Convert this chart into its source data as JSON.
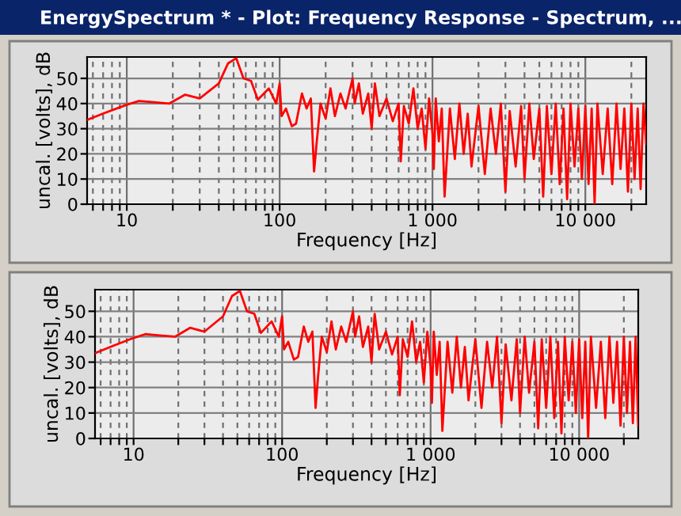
{
  "chart_data": [
    {
      "type": "line",
      "title": "EnergySpectrum * - Plot: Frequency Response - Spectrum, ...",
      "xlabel": "Frequency [Hz]",
      "ylabel": "uncal. [volts], dB",
      "log": "x",
      "grid": true,
      "xlim": [
        5.5,
        25000
      ],
      "ylim": [
        0,
        58.5
      ],
      "xticks": [
        {
          "value": 6,
          "label": null
        },
        {
          "value": 7,
          "label": null
        },
        {
          "value": 8,
          "label": null
        },
        {
          "value": 9,
          "label": null
        },
        10,
        {
          "value": 20,
          "label": null
        },
        {
          "value": 30,
          "label": null
        },
        {
          "value": 40,
          "label": null
        },
        {
          "value": 50,
          "label": null
        },
        {
          "value": 60,
          "label": null
        },
        {
          "value": 70,
          "label": null
        },
        {
          "value": 80,
          "label": null
        },
        {
          "value": 90,
          "label": null
        },
        100,
        {
          "value": 200,
          "label": null
        },
        {
          "value": 300,
          "label": null
        },
        {
          "value": 400,
          "label": null
        },
        {
          "value": 500,
          "label": null
        },
        {
          "value": 600,
          "label": null
        },
        {
          "value": 700,
          "label": null
        },
        {
          "value": 800,
          "label": null
        },
        {
          "value": 900,
          "label": null
        },
        {
          "value": 1000,
          "label": "1 000"
        },
        {
          "value": 2000,
          "label": null
        },
        {
          "value": 3000,
          "label": null
        },
        {
          "value": 4000,
          "label": null
        },
        {
          "value": 5000,
          "label": null
        },
        {
          "value": 6000,
          "label": null
        },
        {
          "value": 7000,
          "label": null
        },
        {
          "value": 8000,
          "label": null
        },
        {
          "value": 9000,
          "label": null
        },
        {
          "value": 10000,
          "label": "10 000"
        },
        {
          "value": 20000,
          "label": null
        }
      ],
      "yticks": [
        0,
        10,
        20,
        30,
        40,
        50
      ],
      "series": [
        {
          "color": "#ff0000",
          "x": [
            5.5,
            7,
            9,
            10,
            12,
            15,
            19,
            24,
            30,
            40,
            46,
            52,
            58,
            65,
            72,
            85,
            95,
            100,
            103,
            110,
            120,
            128,
            140,
            150,
            160,
            168,
            175,
            185,
            200,
            215,
            230,
            250,
            270,
            300,
            310,
            330,
            350,
            380,
            400,
            420,
            450,
            500,
            550,
            600,
            620,
            650,
            700,
            750,
            800,
            850,
            900,
            950,
            1000,
            1020,
            1050,
            1100,
            1150,
            1200,
            1300,
            1400,
            1500,
            1600,
            1700,
            1800,
            2000,
            2200,
            2400,
            2600,
            2800,
            3000,
            3200,
            3500,
            3800,
            4000,
            4300,
            4600,
            5000,
            5300,
            5600,
            6000,
            6400,
            6800,
            7200,
            7600,
            8000,
            8500,
            9000,
            9500,
            10000,
            10500,
            11000,
            11500,
            12000,
            13000,
            14000,
            15000,
            16000,
            17000,
            18000,
            19000,
            20000,
            21000,
            22000,
            23000,
            24000,
            25000
          ],
          "values": [
            33.5,
            36,
            38.5,
            39.5,
            41,
            40.5,
            40,
            43.5,
            42,
            48,
            56,
            58,
            50,
            49,
            41.5,
            46,
            40,
            48,
            35,
            38,
            31,
            32,
            44,
            38,
            42,
            13,
            25,
            40,
            34,
            46,
            35,
            44,
            38,
            50,
            40,
            48,
            36,
            44,
            30,
            48,
            35,
            42,
            33,
            40,
            17,
            39,
            32,
            46,
            30,
            38,
            22,
            42,
            28,
            14,
            42,
            25,
            38,
            3,
            38,
            18,
            40,
            20,
            36,
            15,
            39,
            12,
            38,
            20,
            40,
            5,
            37,
            15,
            39,
            10,
            40,
            18,
            38,
            3,
            39,
            12,
            40,
            8,
            38,
            2,
            40,
            15,
            38,
            10,
            39,
            8,
            38,
            0,
            40,
            12,
            38,
            8,
            40,
            14,
            38,
            5,
            40,
            10,
            38,
            6,
            40,
            24
          ]
        }
      ]
    },
    {
      "type": "line",
      "xlabel": "Frequency [Hz]",
      "ylabel": "uncal. [volts], dB",
      "log": "x",
      "grid": true,
      "xlim": [
        5.5,
        25000
      ],
      "ylim": [
        0,
        58.5
      ],
      "xticks": [
        {
          "value": 6,
          "label": null
        },
        {
          "value": 7,
          "label": null
        },
        {
          "value": 8,
          "label": null
        },
        {
          "value": 9,
          "label": null
        },
        10,
        {
          "value": 20,
          "label": null
        },
        {
          "value": 30,
          "label": null
        },
        {
          "value": 40,
          "label": null
        },
        {
          "value": 50,
          "label": null
        },
        {
          "value": 60,
          "label": null
        },
        {
          "value": 70,
          "label": null
        },
        {
          "value": 80,
          "label": null
        },
        {
          "value": 90,
          "label": null
        },
        100,
        {
          "value": 200,
          "label": null
        },
        {
          "value": 300,
          "label": null
        },
        {
          "value": 400,
          "label": null
        },
        {
          "value": 500,
          "label": null
        },
        {
          "value": 600,
          "label": null
        },
        {
          "value": 700,
          "label": null
        },
        {
          "value": 800,
          "label": null
        },
        {
          "value": 900,
          "label": null
        },
        {
          "value": 1000,
          "label": "1 000"
        },
        {
          "value": 2000,
          "label": null
        },
        {
          "value": 3000,
          "label": null
        },
        {
          "value": 4000,
          "label": null
        },
        {
          "value": 5000,
          "label": null
        },
        {
          "value": 6000,
          "label": null
        },
        {
          "value": 7000,
          "label": null
        },
        {
          "value": 8000,
          "label": null
        },
        {
          "value": 9000,
          "label": null
        },
        {
          "value": 10000,
          "label": "10 000"
        },
        {
          "value": 20000,
          "label": null
        }
      ],
      "yticks": [
        0,
        10,
        20,
        30,
        40,
        50
      ],
      "series": [
        {
          "color": "#ff0000",
          "x": [
            5.5,
            7,
            9,
            10,
            12,
            15,
            19,
            24,
            30,
            40,
            46,
            52,
            58,
            65,
            72,
            85,
            95,
            100,
            103,
            110,
            120,
            128,
            140,
            150,
            160,
            168,
            175,
            185,
            200,
            215,
            230,
            250,
            270,
            300,
            310,
            330,
            350,
            380,
            400,
            420,
            450,
            500,
            550,
            600,
            620,
            650,
            700,
            750,
            800,
            850,
            900,
            950,
            1000,
            1020,
            1050,
            1100,
            1150,
            1200,
            1300,
            1400,
            1500,
            1600,
            1700,
            1800,
            2000,
            2200,
            2400,
            2600,
            2800,
            3000,
            3200,
            3500,
            3800,
            4000,
            4300,
            4600,
            5000,
            5300,
            5600,
            6000,
            6400,
            6800,
            7200,
            7600,
            8000,
            8500,
            9000,
            9500,
            10000,
            10500,
            11000,
            11500,
            12000,
            13000,
            14000,
            15000,
            16000,
            17000,
            18000,
            19000,
            20000,
            21000,
            22000,
            23000,
            24000,
            25000
          ],
          "values": [
            33.5,
            36,
            38.5,
            39.5,
            41,
            40.5,
            40,
            43.5,
            42,
            48,
            56,
            58,
            50,
            49,
            41.5,
            46,
            40,
            48,
            35,
            38,
            31,
            32,
            44,
            38,
            42,
            12,
            25,
            40,
            34,
            46,
            35,
            44,
            38,
            50,
            40,
            48,
            36,
            44,
            30,
            49,
            35,
            42,
            33,
            40,
            17,
            39,
            32,
            46,
            30,
            38,
            22,
            42,
            28,
            14,
            42,
            25,
            38,
            3,
            38,
            18,
            40,
            20,
            36,
            15,
            39,
            12,
            38,
            20,
            40,
            6,
            37,
            15,
            39,
            10,
            40,
            18,
            38,
            4,
            39,
            12,
            40,
            8,
            38,
            2,
            40,
            15,
            38,
            10,
            39,
            8,
            38,
            0,
            40,
            12,
            38,
            8,
            40,
            14,
            38,
            5,
            40,
            10,
            38,
            6,
            40,
            5
          ]
        }
      ]
    }
  ]
}
